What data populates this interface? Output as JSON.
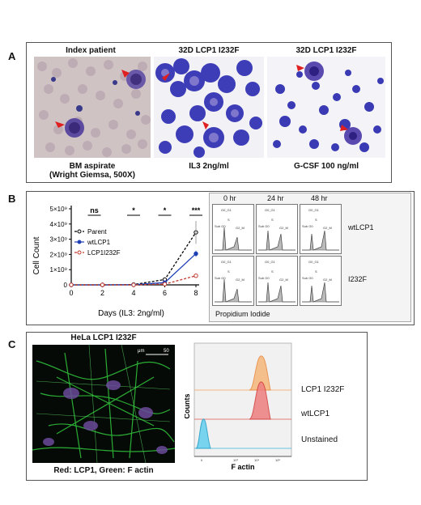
{
  "panel_a": {
    "letter": "A",
    "images": [
      {
        "title": "Index patient",
        "caption_line1": "BM aspirate",
        "caption_line2": "(Wright Giemsa, 500X)"
      },
      {
        "title": "32D LCP1 I232F",
        "caption_line1": "IL3 2ng/ml",
        "caption_line2": ""
      },
      {
        "title": "32D LCP1 I232F",
        "caption_line1": "G-CSF 100 ng/ml",
        "caption_line2": ""
      }
    ]
  },
  "panel_b": {
    "letter": "B",
    "chart_data": {
      "type": "line",
      "xlabel": "Days (IL3: 2ng/ml)",
      "ylabel": "Cell Count",
      "x": [
        0,
        2,
        4,
        6,
        8
      ],
      "xticks": [
        "0",
        "2",
        "4",
        "6",
        "8"
      ],
      "yticks": [
        "0",
        "1×10⁹",
        "2×10⁹",
        "3×10⁹",
        "4×10⁹",
        "5×10⁹"
      ],
      "ylim": [
        0,
        5
      ],
      "ylim_unit": "×10⁹",
      "series": [
        {
          "name": "Parent",
          "values": [
            0,
            0,
            0.02,
            0.35,
            3.45
          ],
          "color": "#000000"
        },
        {
          "name": "wtLCP1",
          "values": [
            0,
            0,
            0.01,
            0.15,
            2.05
          ],
          "color": "#1f3fb5"
        },
        {
          "name": "LCP1I232F",
          "values": [
            0,
            0,
            0.0,
            0.05,
            0.6
          ],
          "color": "#c0392b"
        }
      ],
      "significance": [
        "ns",
        "*",
        "*",
        "***"
      ],
      "legend": "upper-left"
    },
    "histograms": {
      "columns": [
        "0 hr",
        "24 hr",
        "48 hr"
      ],
      "rows": [
        "wtLCP1",
        "I232F"
      ],
      "xlabel": "Propidium Iodide",
      "labels": {
        "g0": "G0_G1",
        "s": "S",
        "g2": "G2_M",
        "sub": "Sub G0"
      }
    }
  },
  "panel_c": {
    "letter": "C",
    "image_title": "HeLa LCP1 I232F",
    "image_caption": "Red: LCP1, Green: F actin",
    "scale_text": "μm",
    "scale_value": "50",
    "flow": {
      "ylabel": "Counts",
      "xlabel": "F actin",
      "traces": [
        "LCP1 I232F",
        "wtLCP1",
        "Unstained"
      ],
      "colors": [
        "#f2a65a",
        "#e05555",
        "#3bb5d8"
      ]
    }
  }
}
